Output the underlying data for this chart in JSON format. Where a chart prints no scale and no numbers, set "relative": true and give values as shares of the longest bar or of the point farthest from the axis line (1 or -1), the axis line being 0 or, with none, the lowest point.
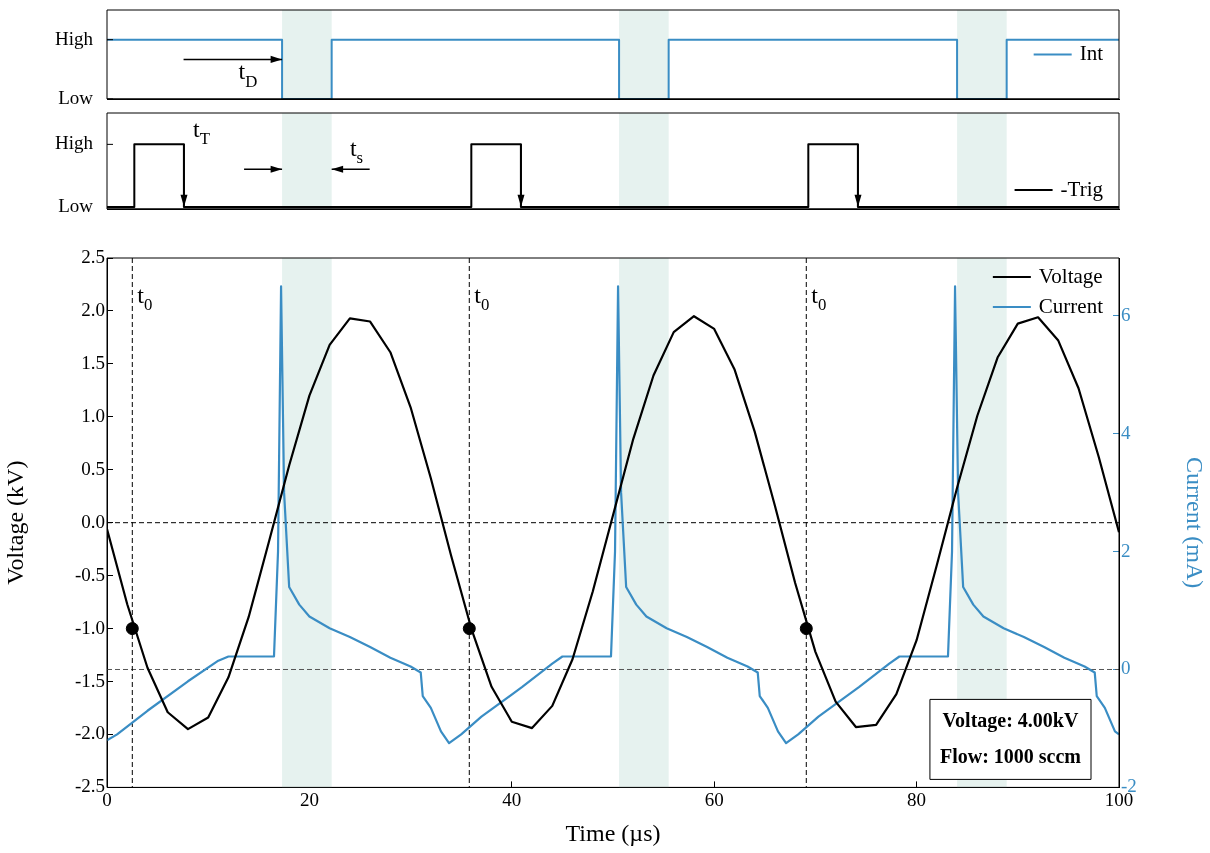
{
  "chart_data": [
    {
      "type": "step",
      "xlim": [
        0,
        100
      ],
      "relative": true,
      "tick_labels": "y",
      "legend": "right",
      "series": [
        {
          "name": "Int",
          "color": "#3a8dc4",
          "x": [
            0,
            17.3,
            22.2,
            50.6,
            55.5,
            84,
            88.9,
            100
          ],
          "values": [
            1,
            0,
            1,
            0,
            1,
            0,
            1,
            1
          ]
        }
      ],
      "bands": [
        {
          "axis": "x",
          "from": 17.3,
          "to": 22.2,
          "color": "#e6f2ef"
        },
        {
          "axis": "x",
          "from": 50.6,
          "to": 55.5,
          "color": "#e6f2ef"
        },
        {
          "axis": "x",
          "from": 84,
          "to": 88.9,
          "color": "#e6f2ef"
        }
      ],
      "annotations": [
        "High",
        "Low",
        "t$_{D}$"
      ]
    },
    {
      "type": "step",
      "xlim": [
        0,
        100
      ],
      "relative": true,
      "tick_labels": "y",
      "legend": "bottom right",
      "series": [
        {
          "name": "-Trig",
          "color": "#000000",
          "x": [
            0,
            2.7,
            7.6,
            36,
            40.9,
            69.3,
            74.2,
            100
          ],
          "values": [
            0,
            1,
            0,
            1,
            0,
            1,
            0,
            0
          ]
        }
      ],
      "bands": [
        {
          "axis": "x",
          "from": 17.3,
          "to": 22.2,
          "color": "#e6f2ef"
        },
        {
          "axis": "x",
          "from": 50.6,
          "to": 55.5,
          "color": "#e6f2ef"
        },
        {
          "axis": "x",
          "from": 84,
          "to": 88.9,
          "color": "#e6f2ef"
        }
      ],
      "annotations": [
        "High",
        "Low",
        "t$_{T}$",
        "t$_{s}$"
      ]
    },
    {
      "type": "line",
      "xlabel": "Time (µs)",
      "ylabel": "Voltage (kV)",
      "y2label": "Current (mA)",
      "xlim": [
        0,
        100
      ],
      "xticks": [
        0,
        20,
        40,
        60,
        80,
        100
      ],
      "ylim": [
        -2.5,
        2.5
      ],
      "yticks": [
        {
          "value": -2.5,
          "label": "-2.5"
        },
        {
          "value": -2,
          "label": "-2.0"
        },
        {
          "value": -1.5,
          "label": "-1.5"
        },
        {
          "value": -1,
          "label": "-1.0"
        },
        {
          "value": -0.5,
          "label": "-0.5"
        },
        {
          "value": 0,
          "label": "0.0"
        },
        {
          "value": 0.5,
          "label": "0.5"
        },
        {
          "value": 1,
          "label": "1.0"
        },
        {
          "value": 1.5,
          "label": "1.5"
        },
        {
          "value": 2,
          "label": "2.0"
        },
        {
          "value": 2.5,
          "label": "2.5"
        }
      ],
      "y2lim": [
        -2,
        6.98
      ],
      "y2ticks": [
        -2,
        0,
        2,
        4,
        6
      ],
      "legend": "top right",
      "series": [
        {
          "name": "Voltage",
          "color": "#000000",
          "x": [
            0,
            2,
            4,
            6,
            8,
            10,
            12,
            14,
            16,
            18,
            20,
            22,
            24,
            26,
            28,
            30,
            32,
            34,
            36,
            38,
            40,
            42,
            44,
            46,
            48,
            50,
            52,
            54,
            56,
            58,
            60,
            62,
            64,
            66,
            68,
            70,
            72,
            74,
            76,
            78,
            80,
            82,
            84,
            86,
            88,
            90,
            92,
            94,
            96,
            98,
            100
          ],
          "values": [
            -0.06,
            -0.77,
            -1.37,
            -1.79,
            -1.95,
            -1.84,
            -1.46,
            -0.89,
            -0.18,
            0.54,
            1.2,
            1.68,
            1.93,
            1.9,
            1.61,
            1.09,
            0.42,
            -0.31,
            -1.0,
            -1.55,
            -1.88,
            -1.94,
            -1.73,
            -1.29,
            -0.65,
            0.07,
            0.79,
            1.39,
            1.8,
            1.95,
            1.83,
            1.45,
            0.86,
            0.16,
            -0.57,
            -1.22,
            -1.69,
            -1.93,
            -1.91,
            -1.62,
            -1.11,
            -0.4,
            0.33,
            1.01,
            1.56,
            1.88,
            1.94,
            1.72,
            1.27,
            0.62,
            -0.09
          ]
        },
        {
          "name": "Current",
          "color": "#3a8dc4",
          "axis": "y2",
          "x": [
            0,
            1,
            4,
            8,
            11,
            12,
            16.5,
            16.9,
            17.2,
            17.5,
            18,
            19,
            20,
            22,
            24,
            26,
            28,
            30,
            31,
            31.2,
            32,
            33,
            33.8,
            35,
            37,
            41,
            44,
            45,
            49.8,
            50.2,
            50.5,
            50.8,
            51.3,
            52.3,
            53.3,
            55.3,
            57.3,
            59.3,
            61.3,
            63.3,
            64.3,
            64.5,
            65.3,
            66.3,
            67.1,
            68.3,
            70.3,
            74.3,
            77.3,
            78.3,
            83.1,
            83.5,
            83.8,
            84.1,
            84.6,
            85.6,
            86.6,
            88.6,
            90.6,
            92.6,
            94.6,
            96.6,
            97.6,
            97.8,
            98.6,
            99.6,
            100
          ],
          "values": [
            -1.2,
            -1.1,
            -0.7,
            -0.2,
            0.15,
            0.22,
            0.22,
            2.0,
            6.5,
            3.0,
            1.4,
            1.1,
            0.9,
            0.7,
            0.55,
            0.38,
            0.2,
            0.05,
            -0.05,
            -0.45,
            -0.65,
            -1.05,
            -1.25,
            -1.1,
            -0.8,
            -0.3,
            0.1,
            0.22,
            0.22,
            2.0,
            6.5,
            3.0,
            1.4,
            1.1,
            0.9,
            0.7,
            0.55,
            0.38,
            0.2,
            0.05,
            -0.05,
            -0.45,
            -0.65,
            -1.05,
            -1.25,
            -1.1,
            -0.8,
            -0.3,
            0.1,
            0.22,
            0.22,
            2.0,
            6.5,
            3.0,
            1.4,
            1.1,
            0.9,
            0.7,
            0.55,
            0.38,
            0.2,
            0.05,
            -0.05,
            -0.45,
            -0.65,
            -1.05,
            -1.1
          ]
        },
        {
          "type": "scatter",
          "color": "#000000",
          "marker": "circle",
          "x": [
            2.5,
            35.8,
            69.1
          ],
          "values": [
            -1.0,
            -1.0,
            -1.0
          ]
        }
      ],
      "ref_lines": [
        {
          "axis": "y",
          "value": 0,
          "line_style": "dashed",
          "color": "#000000"
        },
        {
          "axis": "y2",
          "value": 0,
          "line_style": "dashed",
          "color": "#555555"
        },
        {
          "axis": "x",
          "value": 2.5,
          "label": "t$_{0}$",
          "line_style": "dashed",
          "color": "#000000"
        },
        {
          "axis": "x",
          "value": 35.8,
          "label": "t$_{0}$",
          "line_style": "dashed",
          "color": "#000000"
        },
        {
          "axis": "x",
          "value": 69.1,
          "label": "t$_{0}$",
          "line_style": "dashed",
          "color": "#000000"
        }
      ],
      "bands": [
        {
          "axis": "x",
          "from": 17.3,
          "to": 22.2,
          "color": "#e6f2ef"
        },
        {
          "axis": "x",
          "from": 50.6,
          "to": 55.5,
          "color": "#e6f2ef"
        },
        {
          "axis": "x",
          "from": 84,
          "to": 88.9,
          "color": "#e6f2ef"
        }
      ],
      "annotations": [
        "Voltage: 4.00kV",
        "Flow: 1000 sccm"
      ]
    }
  ]
}
